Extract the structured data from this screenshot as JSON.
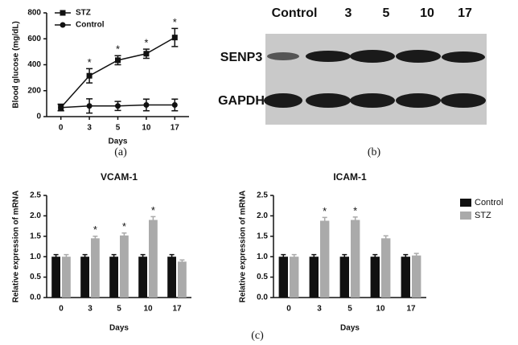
{
  "panel_labels": [
    "(a)",
    "(b)",
    "(c)"
  ],
  "blot": {
    "lane_labels": [
      "Control",
      "3",
      "5",
      "10",
      "17"
    ],
    "row_labels": [
      "SENP3",
      "GAPDH"
    ]
  },
  "chart_data": [
    {
      "type": "line",
      "categories": [
        "0",
        "3",
        "5",
        "10",
        "17"
      ],
      "x_label": "Days",
      "y_label": "Blood glucose (mg/dL)",
      "ylim": [
        0,
        800
      ],
      "yticks": [
        0,
        200,
        400,
        600,
        800
      ],
      "legend": "upper left",
      "series": [
        {
          "name": "STZ",
          "color": "#111111",
          "marker": "square",
          "values": [
            70,
            315,
            435,
            485,
            610
          ],
          "errors": [
            25,
            55,
            35,
            35,
            70
          ],
          "significance": [
            null,
            "*",
            "*",
            "*",
            "*"
          ]
        },
        {
          "name": "Control",
          "color": "#111111",
          "marker": "circle",
          "values": [
            70,
            82,
            82,
            90,
            90
          ],
          "errors": [
            25,
            55,
            35,
            45,
            45
          ]
        }
      ]
    },
    {
      "type": "bar",
      "title": "VCAM-1",
      "categories": [
        "0",
        "3",
        "5",
        "10",
        "17"
      ],
      "x_label": "Days",
      "y_label": "Relative expression of mRNA",
      "ylim": [
        0,
        2.5
      ],
      "yticks": [
        {
          "value": 0,
          "label": "0.0"
        },
        0.5,
        {
          "value": 1,
          "label": "1.0"
        },
        1.5,
        {
          "value": 2,
          "label": "2.0"
        },
        2.5
      ],
      "series": [
        {
          "name": "Control",
          "color": "#111111",
          "values": [
            1.0,
            1.0,
            1.0,
            1.0,
            1.0
          ],
          "errors": [
            0.05,
            0.05,
            0.05,
            0.05,
            0.05
          ]
        },
        {
          "name": "STZ",
          "color": "#aaaaaa",
          "values": [
            1.0,
            1.45,
            1.52,
            1.9,
            0.88
          ],
          "errors": [
            0.05,
            0.05,
            0.06,
            0.08,
            0.04
          ],
          "significance": [
            null,
            "*",
            "*",
            "*",
            null
          ]
        }
      ]
    },
    {
      "type": "bar",
      "title": "ICAM-1",
      "categories": [
        "0",
        "3",
        "5",
        "10",
        "17"
      ],
      "x_label": "Days",
      "y_label": "Relative expression of mRNA",
      "ylim": [
        0,
        2.5
      ],
      "yticks": [
        {
          "value": 0,
          "label": "0.0"
        },
        0.5,
        {
          "value": 1,
          "label": "1.0"
        },
        1.5,
        {
          "value": 2,
          "label": "2.0"
        },
        2.5
      ],
      "legend": "outside right",
      "series": [
        {
          "name": "Control",
          "color": "#111111",
          "values": [
            1.0,
            1.0,
            1.0,
            1.0,
            1.0
          ],
          "errors": [
            0.05,
            0.05,
            0.05,
            0.05,
            0.05
          ]
        },
        {
          "name": "STZ",
          "color": "#aaaaaa",
          "values": [
            1.0,
            1.88,
            1.9,
            1.45,
            1.03
          ],
          "errors": [
            0.05,
            0.08,
            0.07,
            0.06,
            0.05
          ],
          "significance": [
            null,
            "*",
            "*",
            null,
            null
          ]
        }
      ]
    }
  ]
}
